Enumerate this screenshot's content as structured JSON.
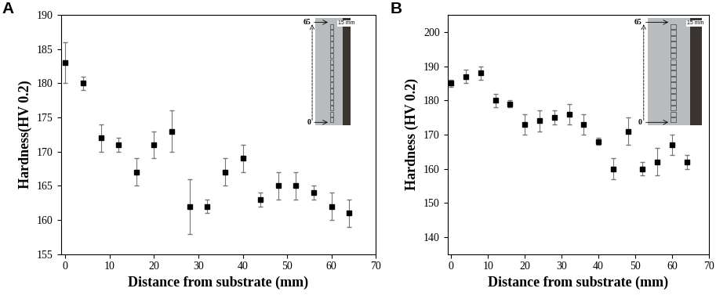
{
  "chart_data": [
    {
      "type": "scatter",
      "panel_label": "A",
      "x_label": "Distance from substrate (mm)",
      "y_label": "Hardness(HV 0.2)",
      "x": [
        0,
        4,
        8,
        12,
        16,
        20,
        24,
        28,
        32,
        36,
        40,
        44,
        48,
        52,
        56,
        60,
        64
      ],
      "values": [
        183,
        180,
        172,
        171,
        167,
        171,
        173,
        162,
        162,
        167,
        169,
        163,
        165,
        165,
        164,
        162,
        161
      ],
      "errors": [
        3,
        1,
        2,
        1,
        2,
        2,
        3,
        4,
        1,
        2,
        2,
        1,
        2,
        2,
        1,
        2,
        2
      ],
      "color": "#000000",
      "marker": "square",
      "xlim": [
        -1,
        70
      ],
      "xticks": [
        0,
        10,
        20,
        30,
        40,
        50,
        60,
        70
      ],
      "ylim": [
        155,
        190
      ],
      "yticks": [
        155,
        160,
        165,
        170,
        175,
        180,
        185,
        190
      ],
      "grid": false,
      "inset_top_label": "65",
      "inset_bottom_label": "0",
      "scale_bar": "15 mm"
    },
    {
      "type": "scatter",
      "panel_label": "B",
      "x_label": "Distance from substrate (mm)",
      "y_label": "Hardness (HV 0.2)",
      "x": [
        0,
        4,
        8,
        12,
        16,
        20,
        24,
        28,
        32,
        36,
        40,
        44,
        48,
        52,
        56,
        60,
        64
      ],
      "values": [
        185,
        187,
        188,
        180,
        179,
        173,
        174,
        175,
        176,
        173,
        168,
        160,
        171,
        160,
        162,
        167,
        162
      ],
      "errors": [
        1,
        2,
        2,
        2,
        1,
        3,
        3,
        2,
        3,
        3,
        1,
        3,
        4,
        2,
        4,
        3,
        2
      ],
      "color": "#000000",
      "marker": "square",
      "xlim": [
        -1,
        70
      ],
      "xticks": [
        0,
        10,
        20,
        30,
        40,
        50,
        60,
        70
      ],
      "ylim": [
        135,
        205
      ],
      "yticks": [
        140,
        150,
        160,
        170,
        180,
        190,
        200
      ],
      "grid": false,
      "inset_top_label": "65",
      "inset_bottom_label": "0",
      "scale_bar": "15 mm"
    }
  ]
}
